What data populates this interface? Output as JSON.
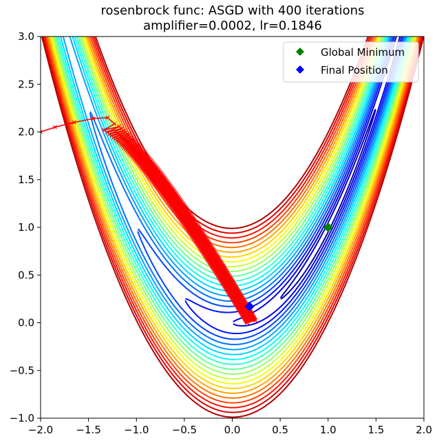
{
  "chart_data": {
    "type": "line",
    "title_line1": "rosenbrock func: ASGD with 400 iterations",
    "title_line2": "amplifier=0.0002, lr=0.1846",
    "xlabel": "",
    "ylabel": "",
    "xlim": [
      -2.0,
      2.0
    ],
    "ylim": [
      -1.0,
      3.0
    ],
    "x_tick_values": [
      -2.0,
      -1.5,
      -1.0,
      -0.5,
      0.0,
      0.5,
      1.0,
      1.5,
      2.0
    ],
    "x_tick_labels": [
      "−2.0",
      "−1.5",
      "−1.0",
      "−0.5",
      "0.0",
      "0.5",
      "1.0",
      "1.5",
      "2.0"
    ],
    "y_tick_values": [
      -1.0,
      -0.5,
      0.0,
      0.5,
      1.0,
      1.5,
      2.0,
      2.5,
      3.0
    ],
    "y_tick_labels": [
      "−1.0",
      "−0.5",
      "0.0",
      "0.5",
      "1.0",
      "1.5",
      "2.0",
      "2.5",
      "3.0"
    ],
    "grid": false,
    "legend_position": "top-right",
    "contour": {
      "function": "rosenbrock",
      "a": 1,
      "b": 100,
      "levels": 20,
      "colormap": "jet"
    },
    "series": [
      {
        "name": "Optimizer Path",
        "color": "#ff0000",
        "marker": "x",
        "iterations": 400,
        "start": [
          -2.0,
          2.0
        ],
        "end": [
          0.18,
          0.17
        ]
      }
    ],
    "markers": [
      {
        "name": "Global Minimum",
        "x": 1.0,
        "y": 1.0,
        "color": "#008000",
        "shape": "diamond"
      },
      {
        "name": "Final Position",
        "x": 0.18,
        "y": 0.17,
        "color": "#0000ff",
        "shape": "diamond"
      }
    ],
    "legend": [
      "Global Minimum",
      "Final Position"
    ]
  }
}
